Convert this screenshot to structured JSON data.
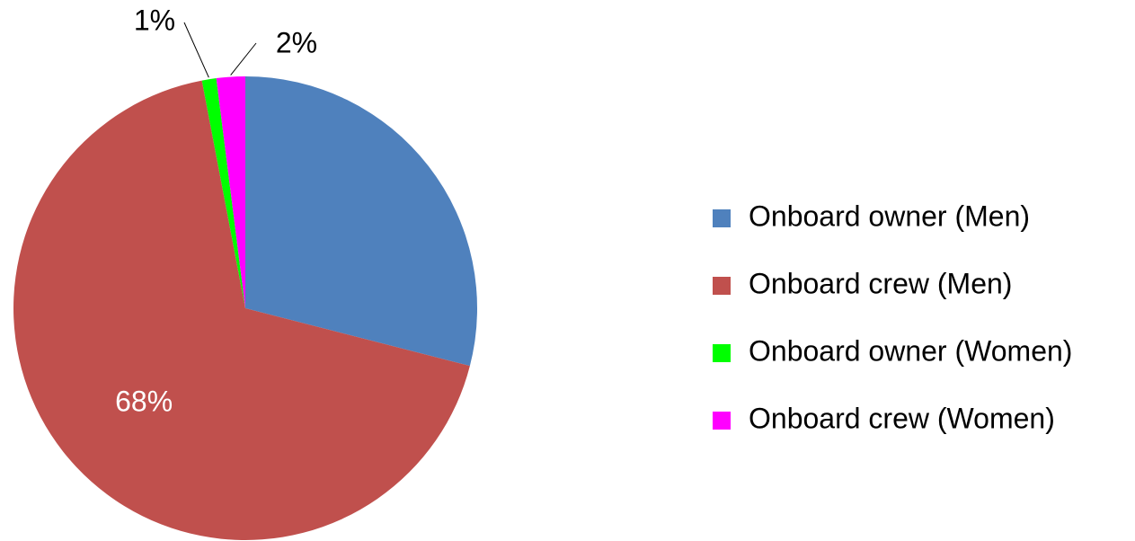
{
  "chart_data": {
    "type": "pie",
    "categories": [
      "Onboard owner (Men)",
      "Onboard crew (Men)",
      "Onboard owner (Women)",
      "Onboard crew (Women)"
    ],
    "values": [
      29,
      68,
      1,
      2
    ],
    "value_labels": [
      null,
      "68%",
      "1%",
      "2%"
    ],
    "colors": [
      "#4f81bd",
      "#c0504d",
      "#00ff00",
      "#ff00ff"
    ],
    "legend": "right"
  }
}
